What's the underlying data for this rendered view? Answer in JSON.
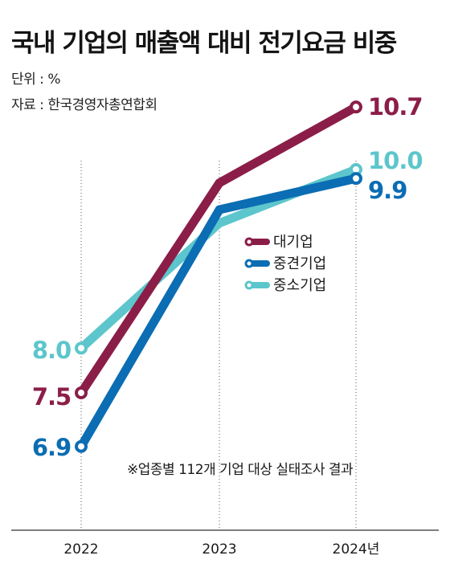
{
  "chart_data": {
    "type": "line",
    "title": "국내 기업의 매출액 대비 전기요금 비중",
    "unit_label": "단위 : %",
    "source_label": "자료 : 한국경영자총연합회",
    "note": "※업종별 112개 기업 대상 실태조사 결과",
    "categories": [
      "2022",
      "2023",
      "2024년"
    ],
    "series": [
      {
        "name": "대기업",
        "values": [
          7.5,
          9.85,
          10.7
        ],
        "labels": [
          "7.5",
          "",
          "10.7"
        ],
        "color": "#8b1e48"
      },
      {
        "name": "중견기업",
        "values": [
          6.9,
          9.55,
          9.9
        ],
        "labels": [
          "6.9",
          "",
          "9.9"
        ],
        "color": "#0b6db3"
      },
      {
        "name": "중소기업",
        "values": [
          8.0,
          9.4,
          10.0
        ],
        "labels": [
          "8.0",
          "",
          "10.0"
        ],
        "color": "#5cc6cc"
      }
    ],
    "grid": false,
    "legend_position": "right-center"
  }
}
